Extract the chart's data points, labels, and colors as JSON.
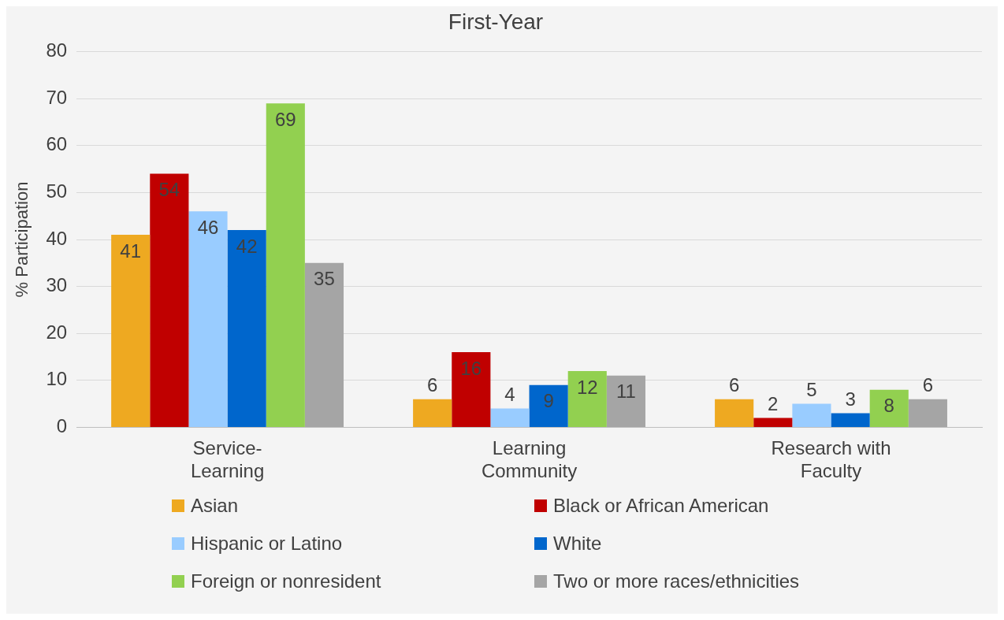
{
  "chart_data": {
    "type": "bar",
    "title": "First-Year",
    "ylabel": "% Participation",
    "categories": [
      "Service-Learning",
      "Learning Community",
      "Research with Faculty"
    ],
    "series": [
      {
        "name": "Asian",
        "color": "#eea921",
        "values": [
          41,
          6,
          6
        ]
      },
      {
        "name": "Black or African American",
        "color": "#c00000",
        "values": [
          54,
          16,
          2
        ]
      },
      {
        "name": "Hispanic or Latino",
        "color": "#99ccff",
        "values": [
          46,
          4,
          5
        ]
      },
      {
        "name": "White",
        "color": "#0066cc",
        "values": [
          42,
          9,
          3
        ]
      },
      {
        "name": "Foreign or nonresident",
        "color": "#92d050",
        "values": [
          69,
          12,
          8
        ]
      },
      {
        "name": "Two or more races/ethnicities",
        "color": "#a5a5a5",
        "values": [
          35,
          11,
          6
        ]
      }
    ],
    "ylim": [
      0,
      80
    ],
    "yticks": [
      0,
      10,
      20,
      30,
      40,
      50,
      60,
      70,
      80
    ],
    "grid": "y",
    "legend": "bottom",
    "data_labels": true
  }
}
